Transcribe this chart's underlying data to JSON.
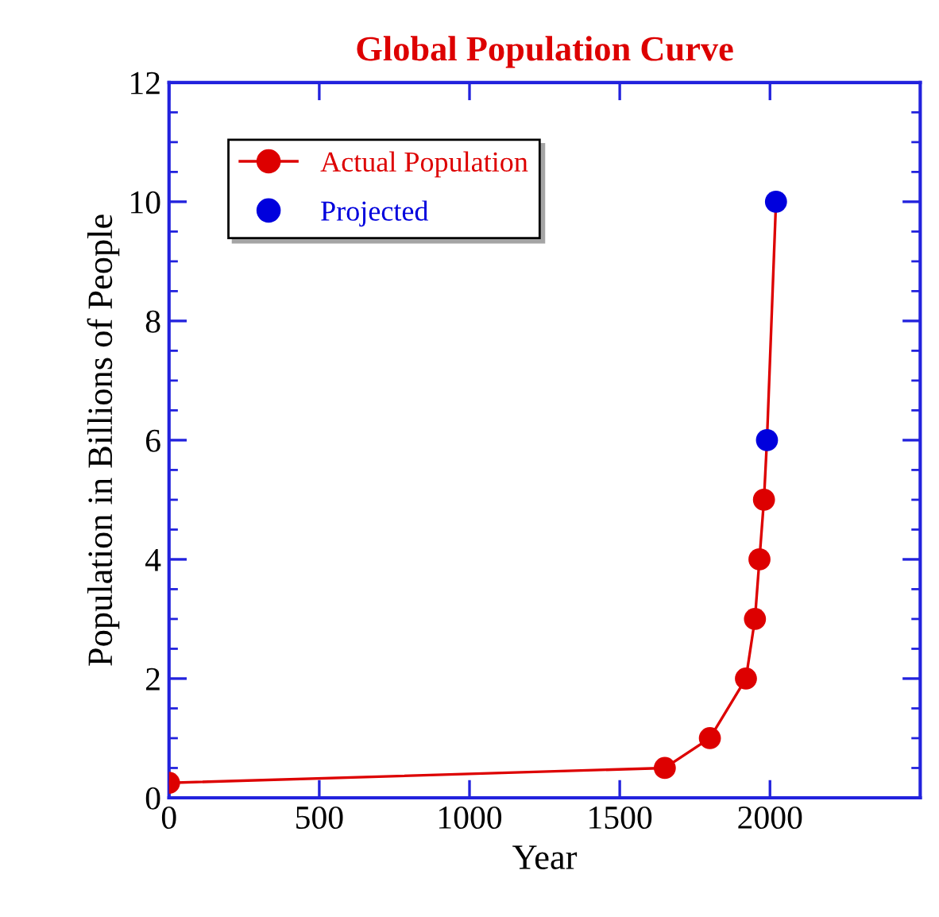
{
  "chart_data": {
    "type": "line",
    "title": "Global Population Curve",
    "xlabel": "Year",
    "ylabel": "Population in Billions of People",
    "series": [
      {
        "name": "Actual Population",
        "color": "#dd0000",
        "marker": "circle",
        "x": [
          0,
          1650,
          1800,
          1920,
          1950,
          1965,
          1980,
          1990,
          2020
        ],
        "values": [
          0.25,
          0.5,
          1,
          2,
          3,
          4,
          5,
          6,
          10
        ],
        "colors": [
          "#dd0000",
          "#dd0000",
          "#dd0000",
          "#dd0000",
          "#dd0000",
          "#dd0000",
          "#dd0000",
          null,
          null
        ]
      },
      {
        "name": "Projected",
        "type": "scatter",
        "color": "#0000dd",
        "marker": "circle",
        "x": [
          1990,
          2020
        ],
        "values": [
          6,
          10
        ]
      }
    ],
    "xlim": [
      0,
      2500
    ],
    "xticks": [
      0,
      500,
      1000,
      1500,
      2000
    ],
    "ylim": [
      0,
      12
    ],
    "yticks": [
      0,
      2,
      4,
      6,
      8,
      10,
      12
    ],
    "grid": false,
    "legend": "top left"
  }
}
